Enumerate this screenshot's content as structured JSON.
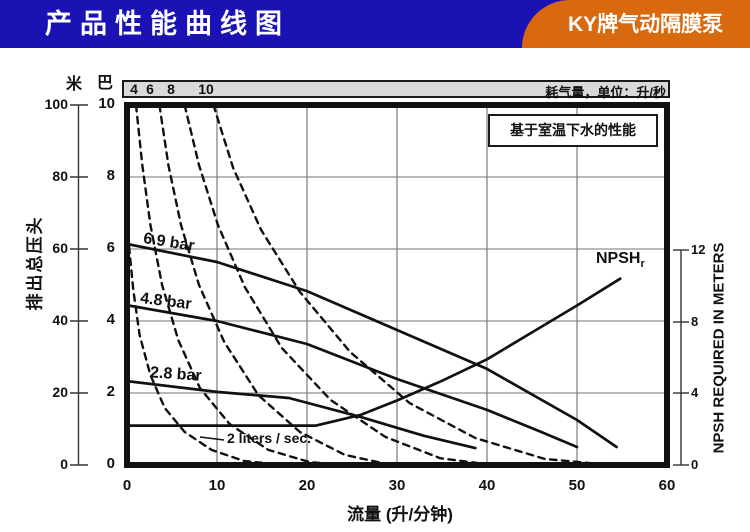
{
  "header": {
    "title": "产品性能曲线图",
    "badge": "KY牌气动隔膜泵",
    "bar_color": "#1b12b4",
    "badge_color": "#d9690f"
  },
  "air_strip": {
    "ticks": [
      "4",
      "6",
      "8",
      "10"
    ],
    "label": "耗气量，单位：升/秒"
  },
  "note": "基于室温下水的性能",
  "axes": {
    "left_units": {
      "meters": "米",
      "bar": "巴"
    },
    "head_m": [
      "100",
      "80",
      "60",
      "40",
      "20",
      "0"
    ],
    "head_bar": [
      "10",
      "8",
      "6",
      "4",
      "2",
      "0"
    ],
    "flow": [
      "0",
      "10",
      "20",
      "30",
      "40",
      "50",
      "60"
    ],
    "npsh": [
      "12",
      "8",
      "4",
      "0"
    ],
    "left_title": "排出总压头",
    "bottom_title": "流量 (升/分钟)",
    "right_title": "NPSH REQUIRED IN METERS"
  },
  "curve_labels": {
    "p69": "6.9 bar",
    "p48": "4.8 bar",
    "p28": "2.8 bar",
    "npshr_main": "NPSH",
    "npshr_sub": "r",
    "liters": "2 liters / sec."
  },
  "chart_data": {
    "type": "line",
    "title": "产品性能曲线图",
    "xlabel": "流量 (升/分钟)",
    "xlim": [
      0,
      60
    ],
    "ylabel_left": "排出总压头 (米 / 巴)",
    "ylim_meters": [
      0,
      100
    ],
    "ylim_bar": [
      0,
      10
    ],
    "ylabel_right": "NPSH REQUIRED IN METERS",
    "ylim_npsh": [
      0,
      12
    ],
    "grid": true,
    "note": "基于室温下水的性能",
    "air_consumption_units": "升/秒",
    "series": [
      {
        "name": "head-6p9bar",
        "label": "6.9 bar",
        "style": "solid",
        "y_axis": "head_m",
        "points": [
          [
            0,
            61.4
          ],
          [
            10,
            56.4
          ],
          [
            20,
            48.3
          ],
          [
            30,
            37.5
          ],
          [
            40,
            26.7
          ],
          [
            50,
            12.5
          ],
          [
            54.4,
            5.0
          ]
        ]
      },
      {
        "name": "head-4p8bar",
        "label": "4.8 bar",
        "style": "solid",
        "y_axis": "head_m",
        "points": [
          [
            0,
            44.4
          ],
          [
            10,
            40.0
          ],
          [
            20,
            33.6
          ],
          [
            30,
            23.9
          ],
          [
            40,
            15.3
          ],
          [
            46,
            9.2
          ],
          [
            50,
            5.0
          ]
        ]
      },
      {
        "name": "head-2p8bar",
        "label": "2.8 bar",
        "style": "solid",
        "y_axis": "head_m",
        "points": [
          [
            0,
            23.3
          ],
          [
            10,
            20.3
          ],
          [
            18,
            18.6
          ],
          [
            26,
            13.3
          ],
          [
            33,
            8.1
          ],
          [
            38.7,
            4.7
          ]
        ]
      },
      {
        "name": "npsh-required",
        "label": "NPSHr",
        "style": "solid",
        "y_axis": "npsh_m",
        "points": [
          [
            0,
            2.2
          ],
          [
            14,
            2.2
          ],
          [
            21,
            2.2
          ],
          [
            26,
            2.8
          ],
          [
            30,
            3.6
          ],
          [
            35,
            4.7
          ],
          [
            40,
            5.9
          ],
          [
            45,
            7.4
          ],
          [
            50,
            8.9
          ],
          [
            54.8,
            10.4
          ]
        ]
      },
      {
        "name": "air-2lps",
        "label": "2 liters / sec.",
        "style": "dashed",
        "y_axis": "head_m",
        "points": [
          [
            0.1,
            64
          ],
          [
            0.7,
            48.6
          ],
          [
            1.4,
            36.1
          ],
          [
            2.6,
            25.0
          ],
          [
            4.2,
            15.8
          ],
          [
            6.4,
            9.2
          ],
          [
            9.4,
            4.2
          ],
          [
            13,
            1.1
          ],
          [
            17.5,
            0
          ]
        ]
      },
      {
        "name": "air-4lps",
        "label": "4",
        "style": "dashed",
        "y_axis": "head_m",
        "points": [
          [
            1,
            100
          ],
          [
            1.7,
            83.3
          ],
          [
            2.6,
            66.7
          ],
          [
            3.9,
            50.0
          ],
          [
            5.7,
            34.7
          ],
          [
            8.1,
            21.4
          ],
          [
            11.4,
            11.4
          ],
          [
            15.7,
            4.2
          ],
          [
            20.3,
            0.8
          ],
          [
            24.2,
            0
          ]
        ]
      },
      {
        "name": "air-6lps",
        "label": "6",
        "style": "dashed",
        "y_axis": "head_m",
        "points": [
          [
            3.6,
            100
          ],
          [
            4.6,
            83.3
          ],
          [
            6,
            66.7
          ],
          [
            8,
            50.0
          ],
          [
            10.8,
            34.2
          ],
          [
            14.6,
            19.4
          ],
          [
            19.2,
            9.2
          ],
          [
            24.2,
            2.8
          ],
          [
            29.4,
            0
          ]
        ]
      },
      {
        "name": "air-8lps",
        "label": "8",
        "style": "dashed",
        "y_axis": "head_m",
        "points": [
          [
            6.4,
            100
          ],
          [
            8,
            83.3
          ],
          [
            10.1,
            66.7
          ],
          [
            13.1,
            49.4
          ],
          [
            17.2,
            32.5
          ],
          [
            22.6,
            18.1
          ],
          [
            28.7,
            7.8
          ],
          [
            34.8,
            1.9
          ],
          [
            40.6,
            0
          ]
        ]
      },
      {
        "name": "air-10lps",
        "label": "10",
        "style": "dashed",
        "y_axis": "head_m",
        "points": [
          [
            9.6,
            100
          ],
          [
            11.8,
            82.5
          ],
          [
            14.9,
            65.3
          ],
          [
            19.2,
            48.1
          ],
          [
            24.8,
            31.4
          ],
          [
            31.4,
            17.2
          ],
          [
            38.7,
            7.5
          ],
          [
            46.4,
            1.7
          ],
          [
            53.7,
            0
          ]
        ]
      }
    ]
  }
}
